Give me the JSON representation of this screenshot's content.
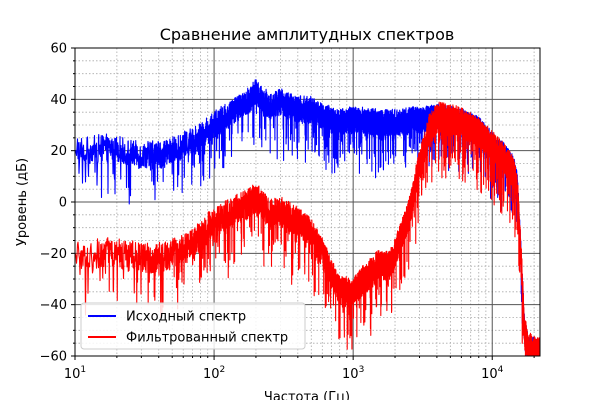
{
  "chart_data": {
    "type": "line",
    "title": "Сравнение амплитудных спектров",
    "xlabel": "Частота (Гц)",
    "ylabel": "Уровень (дБ)",
    "x_scale": "log",
    "xlim": [
      10,
      22050
    ],
    "ylim": [
      -60,
      60
    ],
    "grid": {
      "major": true,
      "minor": true
    },
    "legend_position": "bottom-left",
    "x_ticks": [
      {
        "value": 10,
        "mantissa": "10",
        "exponent": "1"
      },
      {
        "value": 100,
        "mantissa": "10",
        "exponent": "2"
      },
      {
        "value": 1000,
        "mantissa": "10",
        "exponent": "3"
      },
      {
        "value": 10000,
        "mantissa": "10",
        "exponent": "4"
      }
    ],
    "y_ticks": [
      {
        "value": -60,
        "label": "−60"
      },
      {
        "value": -40,
        "label": "−40"
      },
      {
        "value": -20,
        "label": "−20"
      },
      {
        "value": 0,
        "label": "0"
      },
      {
        "value": 20,
        "label": "20"
      },
      {
        "value": 40,
        "label": "40"
      },
      {
        "value": 60,
        "label": "60"
      }
    ],
    "series": [
      {
        "name": "Исходный спектр",
        "color": "#0000ff",
        "points": [
          [
            10,
            22
          ],
          [
            12,
            20
          ],
          [
            15,
            21
          ],
          [
            20,
            21
          ],
          [
            25,
            19
          ],
          [
            30,
            18
          ],
          [
            35,
            19
          ],
          [
            40,
            18
          ],
          [
            50,
            20
          ],
          [
            60,
            22
          ],
          [
            70,
            24
          ],
          [
            80,
            26
          ],
          [
            90,
            28
          ],
          [
            100,
            30
          ],
          [
            120,
            33
          ],
          [
            150,
            37
          ],
          [
            180,
            40
          ],
          [
            200,
            43
          ],
          [
            250,
            37
          ],
          [
            300,
            39
          ],
          [
            400,
            36
          ],
          [
            500,
            36
          ],
          [
            600,
            33
          ],
          [
            800,
            31
          ],
          [
            1000,
            32
          ],
          [
            1500,
            31
          ],
          [
            2000,
            31
          ],
          [
            3000,
            32
          ],
          [
            4000,
            33
          ],
          [
            5000,
            32
          ],
          [
            6000,
            31
          ],
          [
            8000,
            28
          ],
          [
            10000,
            22
          ],
          [
            12000,
            18
          ],
          [
            14000,
            13
          ],
          [
            15000,
            8
          ],
          [
            16000,
            -20
          ],
          [
            17000,
            -50
          ],
          [
            18000,
            -57
          ],
          [
            20000,
            -58
          ],
          [
            22050,
            -59
          ]
        ],
        "noise": 8
      },
      {
        "name": "Фильтрованный спектр",
        "color": "#ff0000",
        "points": [
          [
            10,
            -20
          ],
          [
            12,
            -21
          ],
          [
            15,
            -20
          ],
          [
            20,
            -20
          ],
          [
            25,
            -21
          ],
          [
            30,
            -22
          ],
          [
            35,
            -22
          ],
          [
            40,
            -22
          ],
          [
            50,
            -20
          ],
          [
            60,
            -18
          ],
          [
            70,
            -16
          ],
          [
            80,
            -13
          ],
          [
            90,
            -10
          ],
          [
            100,
            -8
          ],
          [
            120,
            -5
          ],
          [
            150,
            -3
          ],
          [
            180,
            0
          ],
          [
            200,
            2
          ],
          [
            250,
            -5
          ],
          [
            300,
            -4
          ],
          [
            400,
            -8
          ],
          [
            500,
            -12
          ],
          [
            600,
            -20
          ],
          [
            700,
            -28
          ],
          [
            800,
            -35
          ],
          [
            1000,
            -35
          ],
          [
            1200,
            -30
          ],
          [
            1500,
            -25
          ],
          [
            1800,
            -25
          ],
          [
            2000,
            -20
          ],
          [
            2500,
            -5
          ],
          [
            3000,
            15
          ],
          [
            3500,
            28
          ],
          [
            4000,
            33
          ],
          [
            5000,
            32
          ],
          [
            6000,
            31
          ],
          [
            8000,
            27
          ],
          [
            10000,
            22
          ],
          [
            12000,
            17
          ],
          [
            14000,
            12
          ],
          [
            15000,
            6
          ],
          [
            16000,
            -20
          ],
          [
            17000,
            -50
          ],
          [
            18000,
            -57
          ],
          [
            20000,
            -58
          ],
          [
            22050,
            -59
          ]
        ],
        "noise": 9
      }
    ]
  }
}
